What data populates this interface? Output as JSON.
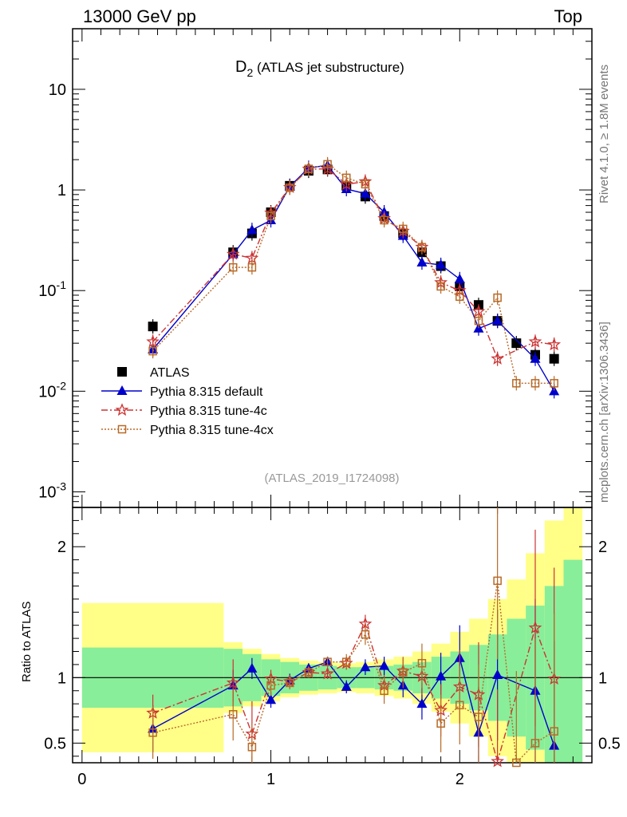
{
  "header": {
    "left": "13000 GeV pp",
    "right": "Top"
  },
  "side_labels": {
    "rivet": "Rivet 4.1.0, ≥ 1.8M events",
    "mcplots": "mcplots.cern.ch [arXiv:1306.3436]"
  },
  "chart_data": {
    "type": "line",
    "title_main": "D",
    "title_sub": "2",
    "title_rest": " (ATLAS jet substructure)",
    "analysis_id": "(ATLAS_2019_I1724098)",
    "xlabel": "",
    "ylabel": "",
    "ratio_ylabel": "Ratio to ATLAS",
    "xlim": [
      -0.05,
      2.7
    ],
    "ylim_log": [
      0.0007,
      40
    ],
    "ratio_ylim": [
      0.35,
      2.3
    ],
    "x_tick_labels": [
      "0",
      "1",
      "2"
    ],
    "x_ticks": [
      0,
      1,
      2
    ],
    "y_tick_labels": [
      {
        "base": "10",
        "exp": "-3",
        "value": 0.001
      },
      {
        "base": "10",
        "exp": "-2",
        "value": 0.01
      },
      {
        "base": "10",
        "exp": "-1",
        "value": 0.1
      },
      {
        "base": "1",
        "exp": "",
        "value": 1
      },
      {
        "base": "10",
        "exp": "",
        "value": 10
      }
    ],
    "ratio_tick_labels": [
      {
        "label": "0.5",
        "value": 0.5
      },
      {
        "label": "1",
        "value": 1
      },
      {
        "label": "2",
        "value": 2
      }
    ],
    "x": [
      0.375,
      0.8,
      0.9,
      1.0,
      1.1,
      1.2,
      1.3,
      1.4,
      1.5,
      1.6,
      1.7,
      1.8,
      1.9,
      2.0,
      2.1,
      2.2,
      2.3,
      2.4,
      2.5,
      2.6
    ],
    "bin_edges": [
      0,
      0.75,
      0.85,
      0.95,
      1.05,
      1.15,
      1.25,
      1.35,
      1.45,
      1.55,
      1.65,
      1.75,
      1.85,
      1.95,
      2.05,
      2.15,
      2.25,
      2.35,
      2.45,
      2.55,
      2.65
    ],
    "band_inner": [
      0.23,
      0.22,
      0.18,
      0.14,
      0.12,
      0.1,
      0.09,
      0.08,
      0.08,
      0.09,
      0.1,
      0.12,
      0.16,
      0.2,
      0.25,
      0.33,
      0.45,
      0.55,
      0.7,
      0.9
    ],
    "band_outer": [
      0.57,
      0.27,
      0.22,
      0.18,
      0.15,
      0.13,
      0.12,
      0.11,
      0.12,
      0.14,
      0.16,
      0.2,
      0.26,
      0.35,
      0.45,
      0.6,
      0.75,
      0.95,
      1.2,
      1.4
    ],
    "series": [
      {
        "name": "ATLAS",
        "color": "#000000",
        "marker": "square-filled",
        "values": [
          0.044,
          0.24,
          0.37,
          0.6,
          1.1,
          1.55,
          1.6,
          1.1,
          0.86,
          0.55,
          0.37,
          0.24,
          0.175,
          0.11,
          0.072,
          0.05,
          0.03,
          0.023,
          0.021,
          null
        ]
      },
      {
        "name": "Pythia 8.315 default",
        "color": "#0000cc",
        "marker": "triangle-filled",
        "values": [
          0.026,
          0.23,
          0.4,
          0.5,
          1.08,
          1.66,
          1.75,
          1.02,
          0.92,
          0.6,
          0.35,
          0.19,
          0.18,
          0.13,
          0.042,
          0.05,
          null,
          0.021,
          0.01,
          null
        ],
        "ratio": [
          0.61,
          0.94,
          1.07,
          0.83,
          0.98,
          1.07,
          1.12,
          0.93,
          1.08,
          1.09,
          0.94,
          0.8,
          1.01,
          1.15,
          0.58,
          1.02,
          null,
          0.9,
          0.48,
          null
        ],
        "ratio_err": [
          0.18,
          0.12,
          0.08,
          0.06,
          0.05,
          0.04,
          0.04,
          0.05,
          0.06,
          0.07,
          0.09,
          0.12,
          0.18,
          0.25,
          0.35,
          0.5,
          0.6,
          0.7,
          0.8,
          0.9
        ]
      },
      {
        "name": "Pythia 8.315 tune-4c",
        "color": "#cc3333",
        "marker": "star-open",
        "values": [
          0.031,
          0.23,
          0.21,
          0.59,
          1.06,
          1.61,
          1.62,
          1.14,
          1.21,
          0.52,
          0.39,
          0.27,
          0.12,
          0.1,
          0.062,
          0.021,
          null,
          0.031,
          0.029,
          null
        ],
        "ratio": [
          0.73,
          0.96,
          0.57,
          0.99,
          0.97,
          1.04,
          1.03,
          1.11,
          1.41,
          0.94,
          1.05,
          1.01,
          0.75,
          0.93,
          0.87,
          0.36,
          null,
          1.38,
          0.99,
          null
        ],
        "ratio_err": [
          0.14,
          0.18,
          0.25,
          0.07,
          0.05,
          0.04,
          0.04,
          0.05,
          0.07,
          0.08,
          0.1,
          0.14,
          0.2,
          0.28,
          0.4,
          0.55,
          0.65,
          0.75,
          0.85,
          0.9
        ]
      },
      {
        "name": "Pythia 8.315 tune-4cx",
        "color": "#b86a28",
        "marker": "square-open",
        "values": [
          0.025,
          0.17,
          0.17,
          0.55,
          1.05,
          1.62,
          1.8,
          1.32,
          1.14,
          0.5,
          0.41,
          0.27,
          0.11,
          0.087,
          0.05,
          0.085,
          0.012,
          0.012,
          0.012,
          null
        ],
        "ratio": [
          0.58,
          0.72,
          0.47,
          0.94,
          0.96,
          1.04,
          1.12,
          1.12,
          1.33,
          0.9,
          1.04,
          1.11,
          0.65,
          0.79,
          0.7,
          1.74,
          0.35,
          0.5,
          0.59,
          null
        ],
        "ratio_err": [
          0.2,
          0.2,
          0.18,
          0.08,
          0.05,
          0.04,
          0.04,
          0.06,
          0.08,
          0.1,
          0.12,
          0.15,
          0.22,
          0.3,
          0.4,
          0.6,
          0.7,
          0.8,
          0.9,
          1.0
        ]
      }
    ]
  }
}
